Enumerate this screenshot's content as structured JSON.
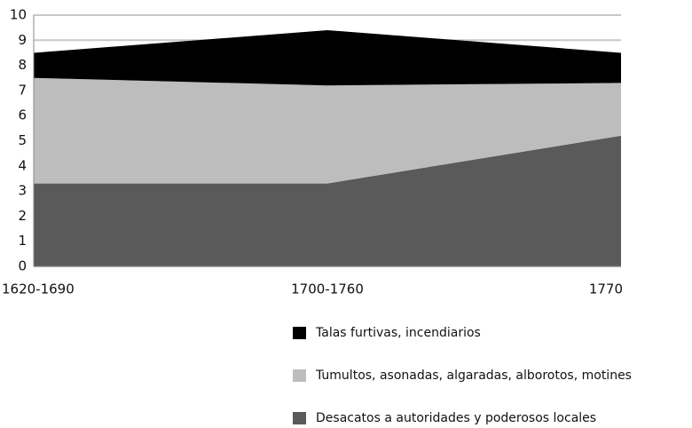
{
  "chart_data": {
    "type": "area",
    "stacked": true,
    "categories": [
      "1620-1690",
      "1700-1760",
      "1770"
    ],
    "series": [
      {
        "name": "Talas furtivas, incendiarios",
        "color": "#000000",
        "values": [
          1.0,
          2.2,
          1.2
        ]
      },
      {
        "name": "Tumultos, asonadas, algaradas, alborotos, motines",
        "color": "#bdbdbd",
        "values": [
          4.2,
          3.9,
          2.1
        ]
      },
      {
        "name": "Desacatos a autoridades y poderosos locales",
        "color": "#5a5a5a",
        "values": [
          3.3,
          3.3,
          5.2
        ]
      }
    ],
    "ylim": [
      0,
      10
    ],
    "yticks": [
      0,
      1,
      2,
      3,
      4,
      5,
      6,
      7,
      8,
      9,
      10
    ],
    "grid": true
  }
}
